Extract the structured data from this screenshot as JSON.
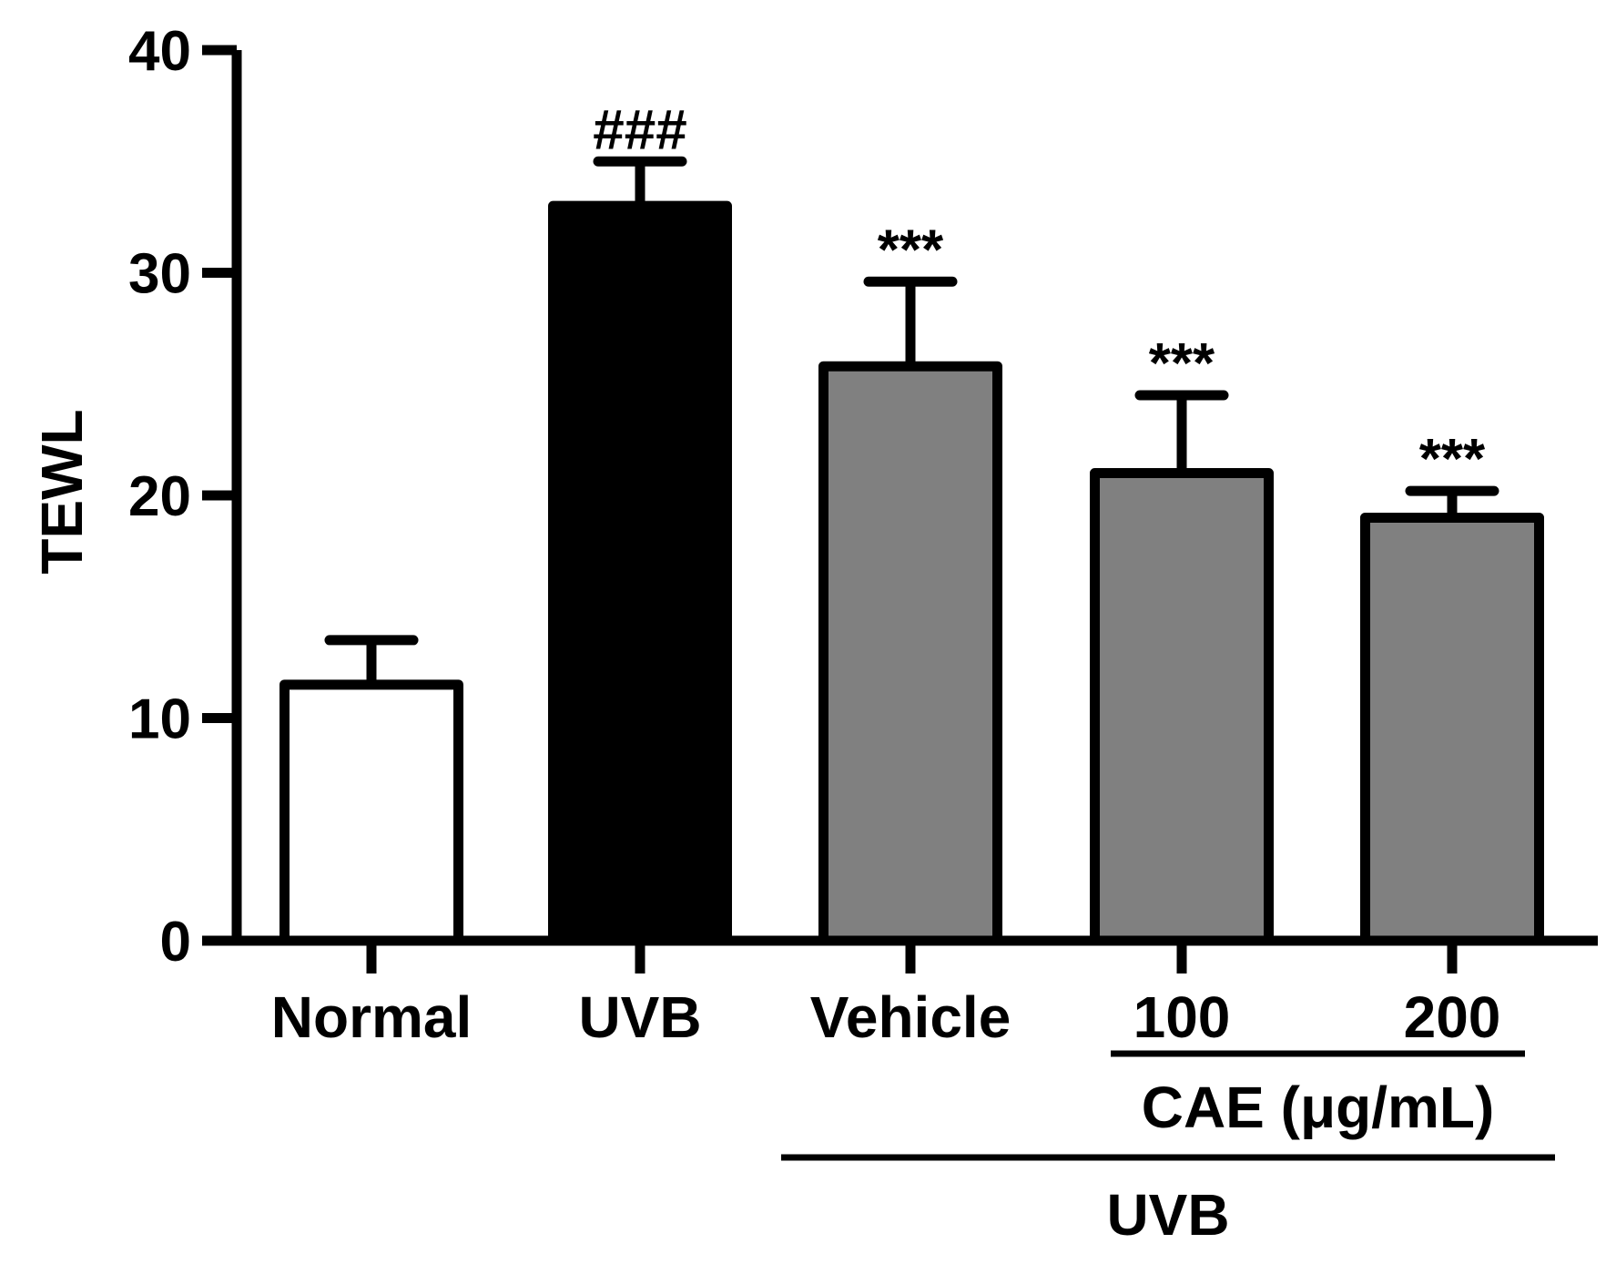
{
  "chart_data": {
    "type": "bar",
    "title": "",
    "xlabel": "",
    "ylabel": "TEWL",
    "ylim": [
      0,
      40
    ],
    "yticks": [
      0,
      10,
      20,
      30,
      40
    ],
    "categories": [
      "Normal",
      "UVB",
      "Vehicle",
      "100",
      "200"
    ],
    "values": [
      11.5,
      33.0,
      25.8,
      21.0,
      19.0
    ],
    "errors": [
      2.0,
      2.0,
      3.8,
      3.5,
      1.2
    ],
    "significance": [
      "",
      "###",
      "***",
      "***",
      "***"
    ],
    "bar_colors": [
      "#ffffff",
      "#000000",
      "#808080",
      "#808080",
      "#808080"
    ],
    "groups": [
      {
        "label": "CAE (μg/mL)",
        "from": 3,
        "to": 4
      },
      {
        "label": "UVB",
        "from": 2,
        "to": 4
      }
    ]
  }
}
